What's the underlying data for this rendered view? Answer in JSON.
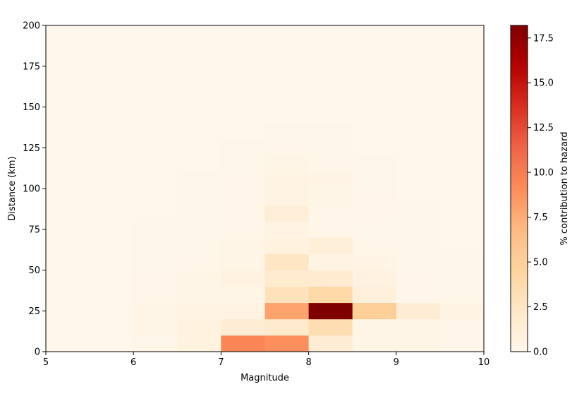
{
  "chart_data": {
    "type": "heatmap",
    "xlabel": "Magnitude",
    "ylabel": "Distance (km)",
    "colorbar_label": "% contribution to hazard",
    "colormap": "OrRd",
    "xlim": [
      5,
      10
    ],
    "ylim": [
      0,
      200
    ],
    "vlim": [
      0,
      18.2
    ],
    "x_ticks": [
      5,
      6,
      7,
      8,
      9,
      10
    ],
    "y_ticks": [
      0,
      25,
      50,
      75,
      100,
      125,
      150,
      175,
      200
    ],
    "colorbar_ticks": [
      "0.0",
      "2.5",
      "5.0",
      "7.5",
      "10.0",
      "12.5",
      "15.0",
      "17.5"
    ],
    "x_bin_edges": [
      5,
      5.5,
      6,
      6.5,
      7,
      7.5,
      8,
      8.5,
      9,
      9.5,
      10
    ],
    "y_bin_edges": [
      0,
      10,
      20,
      30,
      40,
      50,
      60,
      70,
      80,
      90,
      100,
      110,
      120,
      130,
      140,
      150,
      160,
      170,
      180,
      190,
      200
    ],
    "values": [
      [
        0.0,
        0.0,
        0.1,
        0.8,
        9.5,
        9.0,
        1.5,
        0.3,
        0.3,
        0.2
      ],
      [
        0.0,
        0.0,
        0.3,
        0.8,
        1.5,
        2.0,
        3.5,
        0.3,
        0.3,
        0.2
      ],
      [
        0.0,
        0.0,
        0.3,
        0.5,
        0.5,
        8.0,
        18.2,
        5.0,
        1.5,
        0.5
      ],
      [
        0.0,
        0.0,
        0.2,
        0.3,
        0.3,
        3.0,
        4.0,
        1.0,
        0.2,
        0.1
      ],
      [
        0.0,
        0.0,
        0.2,
        0.3,
        0.7,
        1.8,
        1.8,
        0.7,
        0.2,
        0.1
      ],
      [
        0.0,
        0.0,
        0.1,
        0.2,
        0.3,
        2.5,
        0.6,
        0.4,
        0.1,
        0.1
      ],
      [
        0.0,
        0.0,
        0.1,
        0.1,
        0.3,
        0.8,
        1.2,
        0.2,
        0.1,
        0.0
      ],
      [
        0.0,
        0.0,
        0.1,
        0.1,
        0.2,
        0.6,
        0.2,
        0.1,
        0.1,
        0.0
      ],
      [
        0.0,
        0.0,
        0.0,
        0.1,
        0.2,
        1.3,
        0.2,
        0.2,
        0.1,
        0.0
      ],
      [
        0.0,
        0.0,
        0.0,
        0.1,
        0.2,
        0.6,
        0.3,
        0.2,
        0.0,
        0.0
      ],
      [
        0.0,
        0.0,
        0.0,
        0.1,
        0.2,
        0.6,
        0.4,
        0.1,
        0.0,
        0.0
      ],
      [
        0.0,
        0.0,
        0.0,
        0.0,
        0.1,
        0.3,
        0.2,
        0.1,
        0.0,
        0.0
      ],
      [
        0.0,
        0.0,
        0.0,
        0.0,
        0.1,
        0.2,
        0.1,
        0.0,
        0.0,
        0.0
      ],
      [
        0.0,
        0.0,
        0.0,
        0.0,
        0.0,
        0.1,
        0.1,
        0.0,
        0.0,
        0.0
      ],
      [
        0.0,
        0.0,
        0.0,
        0.0,
        0.0,
        0.0,
        0.0,
        0.0,
        0.0,
        0.0
      ],
      [
        0.0,
        0.0,
        0.0,
        0.0,
        0.0,
        0.0,
        0.0,
        0.0,
        0.0,
        0.0
      ],
      [
        0.0,
        0.0,
        0.0,
        0.0,
        0.0,
        0.0,
        0.0,
        0.0,
        0.0,
        0.0
      ],
      [
        0.0,
        0.0,
        0.0,
        0.0,
        0.0,
        0.0,
        0.0,
        0.0,
        0.0,
        0.0
      ],
      [
        0.0,
        0.0,
        0.0,
        0.0,
        0.0,
        0.0,
        0.0,
        0.0,
        0.0,
        0.0
      ],
      [
        0.0,
        0.0,
        0.0,
        0.0,
        0.0,
        0.0,
        0.0,
        0.0,
        0.0,
        0.0
      ]
    ],
    "values_orientation": "rows are distance bins from 0 km upward, columns are magnitude bins from 5 upward"
  }
}
